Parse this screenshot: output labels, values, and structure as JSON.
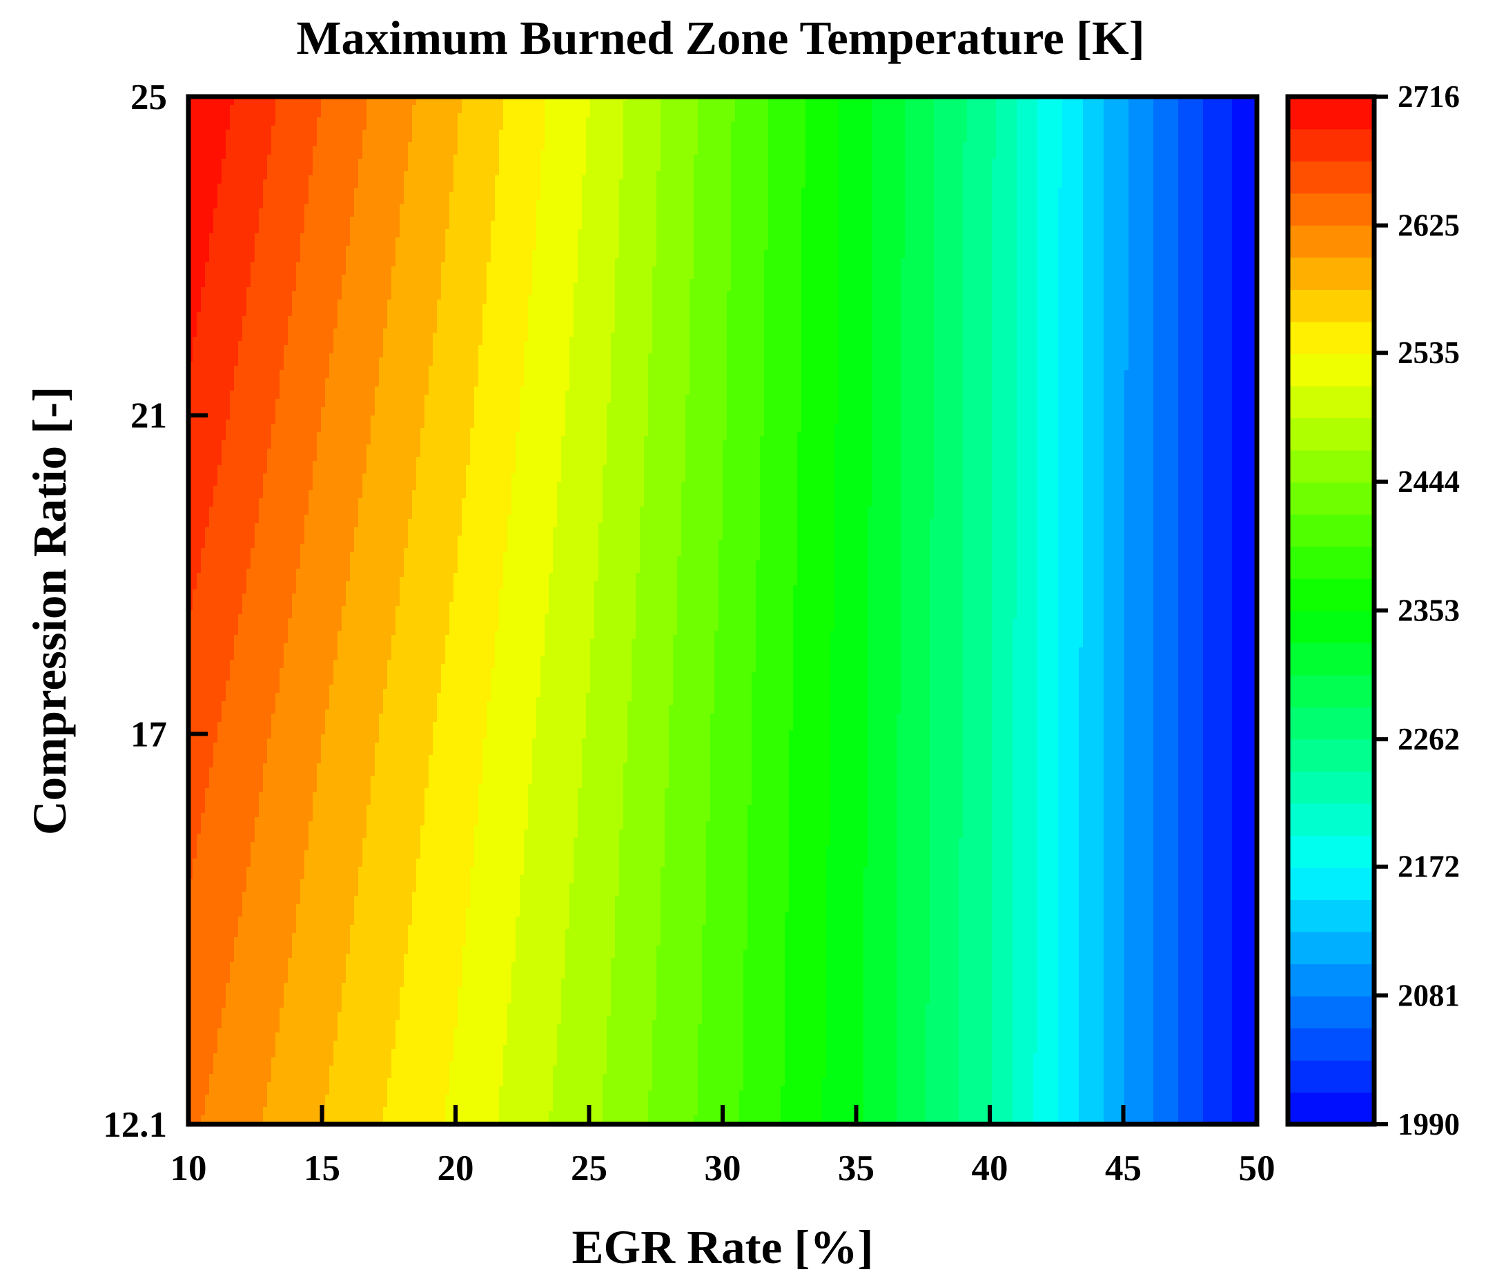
{
  "chart_data": {
    "type": "heatmap",
    "title": "Maximum Burned Zone Temperature [K]",
    "xlabel": "EGR Rate [%]",
    "ylabel": "Compression Ratio [-]",
    "xlim": [
      10,
      50
    ],
    "ylim": [
      12.1,
      25
    ],
    "x_ticks": [
      "10",
      "15",
      "20",
      "25",
      "30",
      "35",
      "40",
      "45",
      "50"
    ],
    "y_ticks": [
      "12.1",
      "17",
      "21",
      "25"
    ],
    "colorbar": {
      "min": 1990,
      "max": 2716,
      "levels": 32,
      "ticks": [
        "1990",
        "2081",
        "2172",
        "2262",
        "2353",
        "2444",
        "2535",
        "2625",
        "2716"
      ]
    },
    "colorscale": [
      "#0000ff",
      "#00ffff",
      "#00ff00",
      "#ffff00",
      "#ff0000"
    ],
    "x": [
      10,
      15,
      20,
      25,
      30,
      35,
      40,
      45,
      50
    ],
    "y": [
      12.1,
      17,
      21,
      25
    ],
    "z": [
      [
        2630,
        2580,
        2530,
        2472,
        2408,
        2335,
        2240,
        2105,
        1990
      ],
      [
        2660,
        2603,
        2548,
        2487,
        2415,
        2338,
        2242,
        2105,
        1990
      ],
      [
        2690,
        2625,
        2566,
        2500,
        2423,
        2341,
        2243,
        2106,
        1990
      ],
      [
        2716,
        2648,
        2583,
        2512,
        2428,
        2343,
        2244,
        2107,
        1990
      ]
    ]
  }
}
